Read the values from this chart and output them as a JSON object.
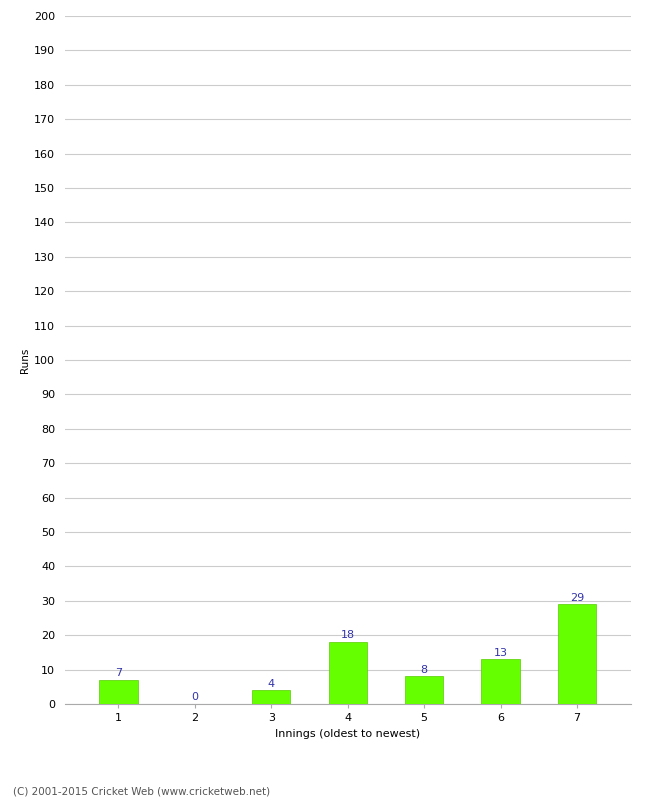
{
  "categories": [
    "1",
    "2",
    "3",
    "4",
    "5",
    "6",
    "7"
  ],
  "values": [
    7,
    0,
    4,
    18,
    8,
    13,
    29
  ],
  "bar_color": "#66ff00",
  "bar_edge_color": "#55cc00",
  "label_color": "#3333aa",
  "ylabel": "Runs",
  "xlabel": "Innings (oldest to newest)",
  "ylim": [
    0,
    200
  ],
  "yticks": [
    0,
    10,
    20,
    30,
    40,
    50,
    60,
    70,
    80,
    90,
    100,
    110,
    120,
    130,
    140,
    150,
    160,
    170,
    180,
    190,
    200
  ],
  "grid_color": "#cccccc",
  "bg_color": "#ffffff",
  "footer": "(C) 2001-2015 Cricket Web (www.cricketweb.net)",
  "label_fontsize": 8,
  "axis_fontsize": 8,
  "footer_fontsize": 7.5,
  "ylabel_fontsize": 7.5
}
